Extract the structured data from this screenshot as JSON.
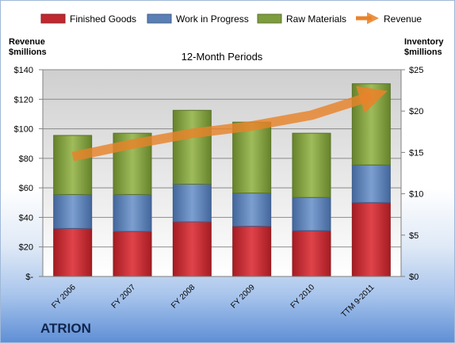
{
  "company": "ATRION",
  "chart_data": {
    "type": "bar",
    "stacked": true,
    "title": "12-Month Periods",
    "categories": [
      "FY 2006",
      "FY 2007",
      "FY 2008",
      "FY 2009",
      "FY 2010",
      "TTM 9-2011"
    ],
    "left_axis": {
      "label_line1": "Revenue",
      "label_line2": "$millions",
      "range": [
        0,
        140
      ],
      "ticks": [
        0,
        20,
        40,
        60,
        80,
        100,
        120,
        140
      ],
      "tick_labels": [
        "$-",
        "$20",
        "$40",
        "$60",
        "$80",
        "$100",
        "$120",
        "$140"
      ]
    },
    "right_axis": {
      "label_line1": "Inventory",
      "label_line2": "$millions",
      "range": [
        0,
        25
      ],
      "ticks": [
        0,
        5,
        10,
        15,
        20,
        25
      ],
      "tick_labels": [
        "$0",
        "$5",
        "$10",
        "$15",
        "$20",
        "$25"
      ]
    },
    "series": [
      {
        "name": "Finished Goods",
        "axis": "left",
        "color": "#c0282f",
        "values": [
          32.5,
          30.5,
          37,
          34,
          31,
          50
        ]
      },
      {
        "name": "Work in Progress",
        "axis": "left",
        "color": "#5a7fb5",
        "values": [
          23,
          25,
          25.5,
          22.5,
          22.5,
          25.5
        ]
      },
      {
        "name": "Raw Materials",
        "axis": "left",
        "color": "#7d9c3e",
        "values": [
          40,
          41.5,
          50,
          48,
          43.5,
          55
        ]
      },
      {
        "name": "Revenue",
        "axis": "right",
        "type": "line",
        "color": "#e8832a",
        "values": [
          14.5,
          16,
          17.3,
          18.2,
          19.5,
          21.8
        ]
      }
    ],
    "grid": true,
    "legend_position": "top"
  }
}
